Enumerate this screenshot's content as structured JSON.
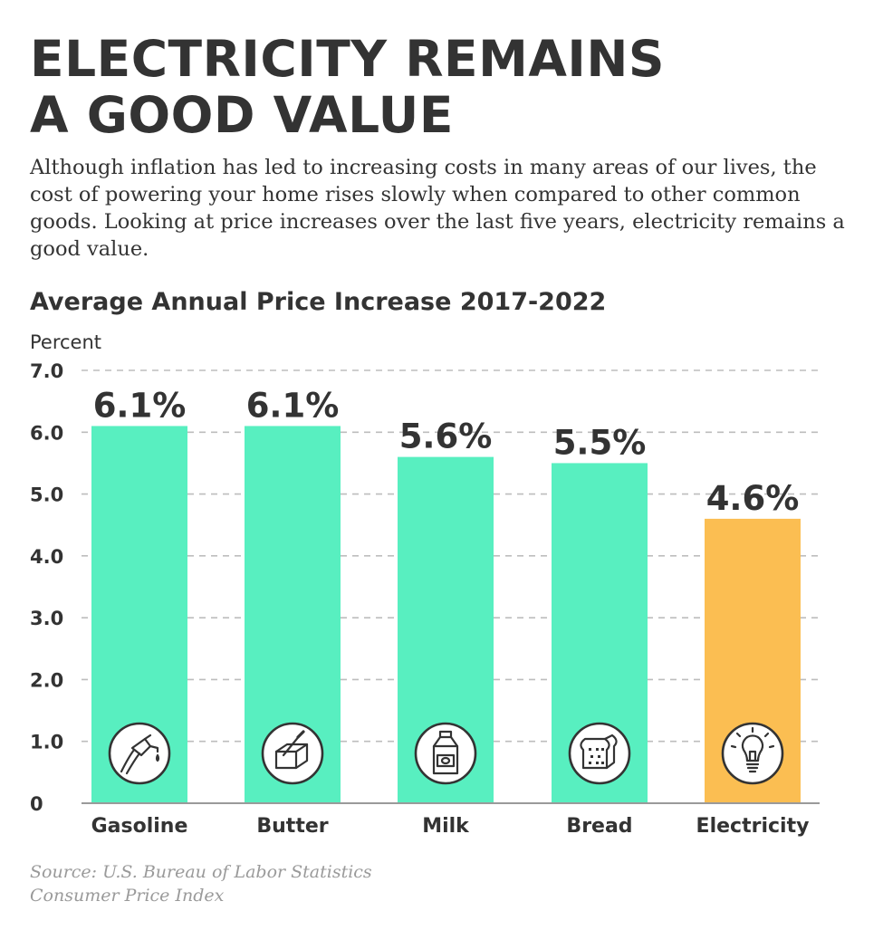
{
  "header": {
    "title": "ELECTRICITY REMAINS\nA GOOD VALUE",
    "intro": "Although inflation has led to increasing costs in many areas of our lives, the cost of powering your home rises slowly when compared to other common goods. Looking at price increases over the last five years, electricity remains a good value."
  },
  "chart_data": {
    "type": "bar",
    "title": "Average Annual Price Increase 2017-2022",
    "xlabel": "",
    "ylabel": "Percent",
    "ylim": [
      0,
      7
    ],
    "yticks": [
      {
        "value": 0,
        "label": "0"
      },
      {
        "value": 1,
        "label": "1.0"
      },
      {
        "value": 2,
        "label": "2.0"
      },
      {
        "value": 3,
        "label": "3.0"
      },
      {
        "value": 4,
        "label": "4.0"
      },
      {
        "value": 5,
        "label": "5.0"
      },
      {
        "value": 6,
        "label": "6.0"
      },
      {
        "value": 7,
        "label": "7.0"
      }
    ],
    "grid": true,
    "categories": [
      "Gasoline",
      "Butter",
      "Milk",
      "Bread",
      "Electricity"
    ],
    "values": [
      6.1,
      6.1,
      5.6,
      5.5,
      4.6
    ],
    "value_labels": [
      "6.1%",
      "6.1%",
      "5.6%",
      "5.5%",
      "4.6%"
    ],
    "colors": [
      "#58efc0",
      "#58efc0",
      "#58efc0",
      "#58efc0",
      "#fbbe52"
    ],
    "icons": [
      "gas-pump-icon",
      "butter-icon",
      "milk-carton-icon",
      "bread-icon",
      "lightbulb-icon"
    ]
  },
  "source": {
    "line1": "Source: U.S. Bureau of Labor Statistics",
    "line2": "Consumer Price Index"
  }
}
